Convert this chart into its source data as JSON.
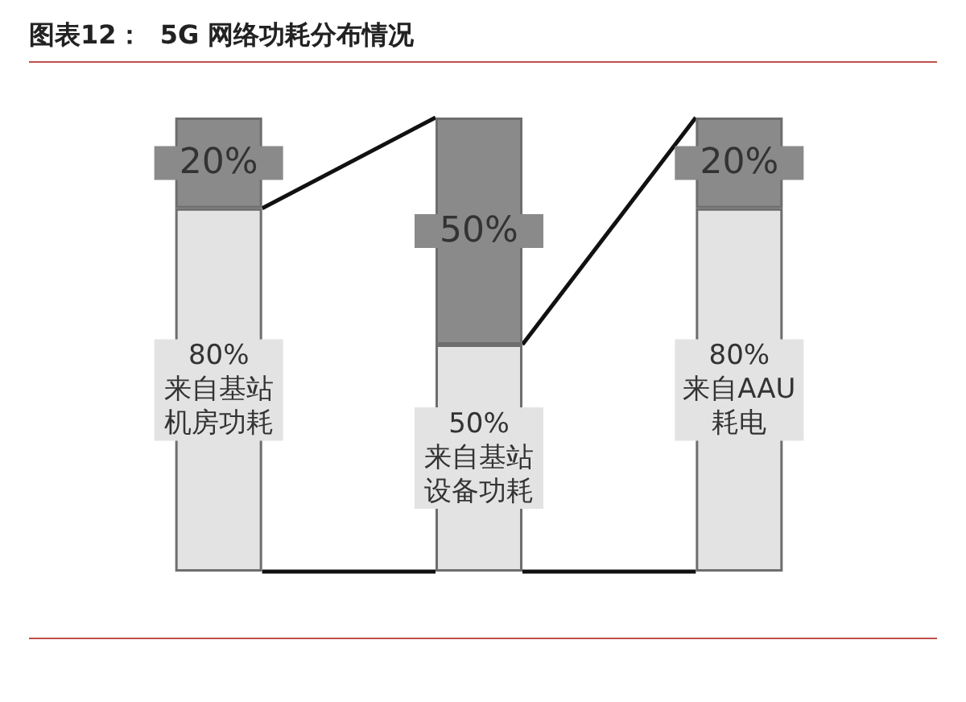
{
  "chart_data": {
    "type": "bar",
    "title": "图表12：  5G 网络功耗分布情况",
    "categories": [
      null,
      null,
      null
    ],
    "stacked": true,
    "tick_labels": false,
    "series": [
      {
        "color": "#e3e3e3",
        "values": [
          80,
          50,
          80
        ],
        "value_labels": [
          "80%\n来自基站机房功耗",
          "50%\n来自基站设备功耗",
          "80%\n来自AAU耗电"
        ]
      },
      {
        "color": "#8a8a8a",
        "values": [
          20,
          50,
          20
        ],
        "value_labels": [
          "20%",
          "50%",
          "20%"
        ]
      }
    ]
  }
}
